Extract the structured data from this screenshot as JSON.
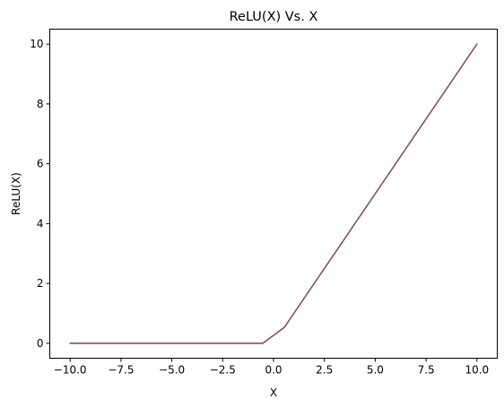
{
  "chart_data": {
    "type": "line",
    "title": "ReLU(X) Vs. X",
    "xlabel": "X",
    "ylabel": "ReLU(X)",
    "xlim": [
      -11.0,
      11.0
    ],
    "ylim": [
      -0.5,
      10.5
    ],
    "xticks": [
      -10.0,
      -7.5,
      -5.0,
      -2.5,
      0.0,
      2.5,
      5.0,
      7.5,
      10.0
    ],
    "xtick_labels": [
      "−10.0",
      "−7.5",
      "−5.0",
      "−2.5",
      "0.0",
      "2.5",
      "5.0",
      "7.5",
      "10.0"
    ],
    "yticks": [
      0,
      2,
      4,
      6,
      8,
      10
    ],
    "ytick_labels": [
      "0",
      "2",
      "4",
      "6",
      "8",
      "10"
    ],
    "grid": false,
    "series": [
      {
        "color": "#7f5266",
        "x": [
          -10.0,
          -9.47,
          -8.95,
          -8.42,
          -7.89,
          -7.37,
          -6.84,
          -6.32,
          -5.79,
          -5.26,
          -4.74,
          -4.21,
          -3.68,
          -3.16,
          -2.63,
          -2.11,
          -1.58,
          -1.05,
          -0.53,
          0.53,
          1.05,
          1.58,
          2.11,
          2.63,
          3.16,
          3.68,
          4.21,
          4.74,
          5.26,
          5.79,
          6.32,
          6.84,
          7.37,
          7.89,
          8.42,
          8.95,
          9.47,
          10.0
        ],
        "y": [
          0,
          0,
          0,
          0,
          0,
          0,
          0,
          0,
          0,
          0,
          0,
          0,
          0,
          0,
          0,
          0,
          0,
          0,
          0,
          0.53,
          1.05,
          1.58,
          2.11,
          2.63,
          3.16,
          3.68,
          4.21,
          4.74,
          5.26,
          5.79,
          6.32,
          6.84,
          7.37,
          7.89,
          8.42,
          8.95,
          9.47,
          10.0
        ]
      }
    ]
  }
}
